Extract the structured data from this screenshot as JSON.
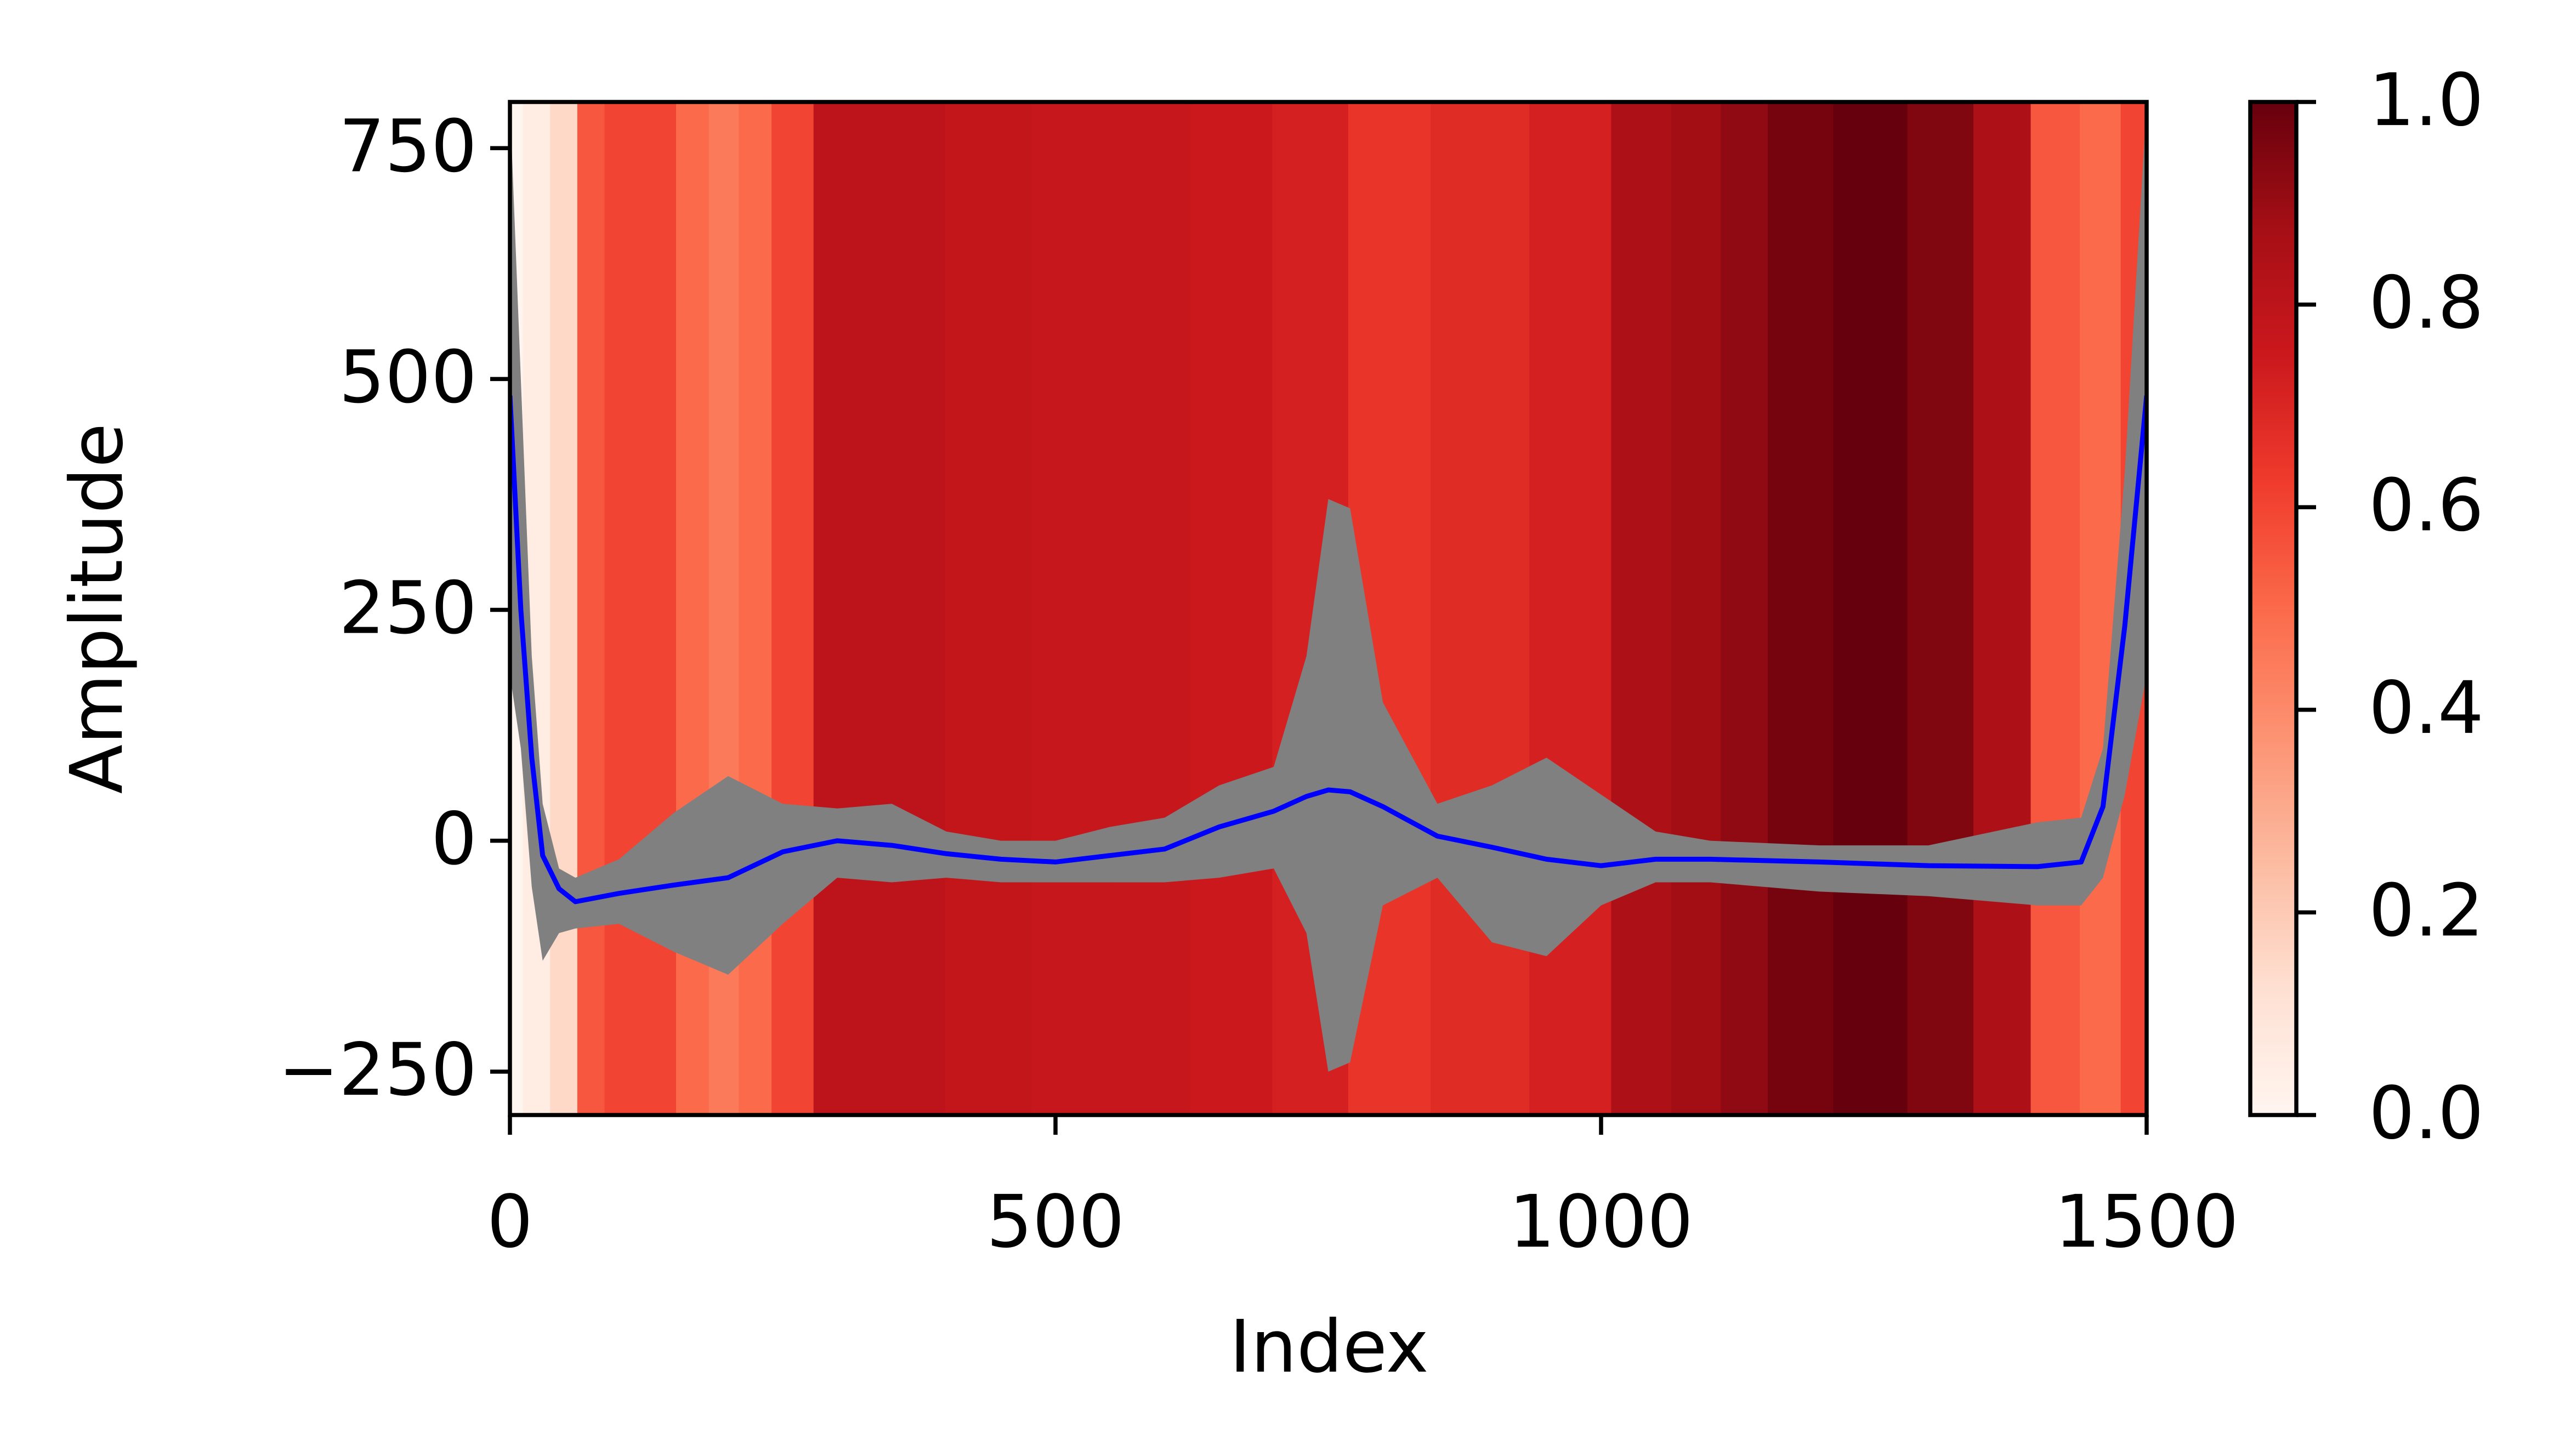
{
  "chart_data": {
    "type": "line",
    "xlabel": "Index",
    "ylabel": "Amplitude",
    "xlim": [
      0,
      1500
    ],
    "xticks": [
      0,
      500,
      1000,
      1500
    ],
    "ylim": [
      -297,
      800
    ],
    "yticks": [
      {
        "value": -250,
        "label": "−250"
      },
      0,
      250,
      500,
      750
    ],
    "color": "#0000ff",
    "band_color": "#808080",
    "x": [
      0,
      10,
      20,
      30,
      45,
      60,
      100,
      150,
      200,
      250,
      300,
      350,
      400,
      450,
      500,
      550,
      600,
      650,
      700,
      730,
      750,
      770,
      800,
      850,
      900,
      950,
      1000,
      1050,
      1100,
      1200,
      1300,
      1400,
      1440,
      1460,
      1480,
      1500
    ],
    "values": [
      482,
      250,
      90,
      -16,
      -52,
      -66,
      -57,
      -48,
      -40,
      -12,
      0,
      -5,
      -14,
      -20,
      -23,
      -16,
      -9,
      15,
      32,
      48,
      55,
      53,
      37,
      5,
      -7,
      -20,
      -27,
      -20,
      -20,
      -23,
      -27,
      -28,
      -23,
      37,
      233,
      482
    ],
    "y_upper": [
      800,
      500,
      200,
      40,
      -30,
      -40,
      -20,
      30,
      70,
      40,
      35,
      40,
      10,
      0,
      0,
      15,
      25,
      60,
      80,
      200,
      370,
      360,
      150,
      40,
      60,
      90,
      50,
      10,
      0,
      -5,
      -5,
      20,
      25,
      100,
      400,
      800
    ],
    "y_lower": [
      180,
      100,
      -50,
      -130,
      -100,
      -95,
      -90,
      -120,
      -145,
      -90,
      -40,
      -45,
      -40,
      -45,
      -45,
      -45,
      -45,
      -40,
      -30,
      -100,
      -250,
      -240,
      -70,
      -40,
      -110,
      -125,
      -70,
      -45,
      -45,
      -55,
      -60,
      -70,
      -70,
      -40,
      50,
      180
    ],
    "heatmap": {
      "x": [
        0,
        25,
        50,
        75,
        100,
        136,
        170,
        196,
        225,
        256,
        302,
        362,
        437,
        520,
        588,
        660,
        739,
        799,
        890,
        980,
        1040,
        1090,
        1131,
        1176,
        1251,
        1312,
        1372,
        1417,
        1462,
        1492,
        1500
      ],
      "values": [
        0.0,
        0.05,
        0.15,
        0.55,
        0.6,
        0.6,
        0.5,
        0.45,
        0.5,
        0.6,
        0.8,
        0.8,
        0.78,
        0.77,
        0.77,
        0.75,
        0.72,
        0.65,
        0.68,
        0.72,
        0.85,
        0.88,
        0.92,
        0.97,
        1.0,
        0.95,
        0.85,
        0.55,
        0.5,
        0.6,
        0.6
      ],
      "colormap": [
        "#fff5f0",
        "#fee0d2",
        "#fcbba1",
        "#fc9272",
        "#fb6a4a",
        "#ef3b2c",
        "#cb181d",
        "#a50f15",
        "#67000d"
      ]
    },
    "colorbar": {
      "lim": [
        0,
        1
      ],
      "ticks": [
        {
          "value": 0,
          "label": "0.0"
        },
        0.2,
        0.4,
        0.6,
        0.8,
        {
          "value": 1,
          "label": "1.0"
        }
      ]
    }
  }
}
